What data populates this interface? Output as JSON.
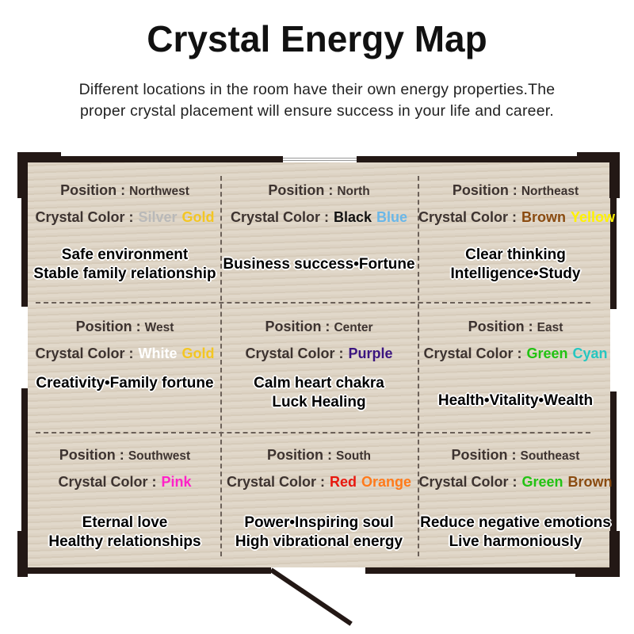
{
  "title": "Crystal Energy Map",
  "subtitle": [
    "Different locations in the room have their own energy properties.The",
    "proper crystal placement will ensure success in your life and career."
  ],
  "position_label": "Position :",
  "crystal_label": "Crystal Color :",
  "colors": {
    "Silver": "#b9b9b9",
    "Gold": "#f3c623",
    "Black": "#111111",
    "Blue": "#6ab7e8",
    "Brown": "#8a4b10",
    "Yellow": "#fff200",
    "White": "#ffffff",
    "Purple": "#3b1580",
    "Green": "#22c313",
    "Cyan": "#26c6c0",
    "Pink": "#ff22c8",
    "Red": "#e8180f",
    "Orange": "#ff7a1a"
  },
  "cells": [
    {
      "position": "Northwest",
      "crystals": [
        "Silver",
        "Gold"
      ],
      "desc": [
        "Safe environment",
        "Stable family relationship"
      ]
    },
    {
      "position": "North",
      "crystals": [
        "Black",
        "Blue"
      ],
      "desc": [
        "Business success•Fortune"
      ]
    },
    {
      "position": "Northeast",
      "crystals": [
        "Brown",
        "Yellow"
      ],
      "desc": [
        "Clear thinking",
        "Intelligence•Study"
      ]
    },
    {
      "position": "West",
      "crystals": [
        "White",
        "Gold"
      ],
      "desc": [
        "Creativity•Family fortune"
      ]
    },
    {
      "position": "Center",
      "crystals": [
        "Purple"
      ],
      "desc": [
        "Calm heart chakra",
        "Luck Healing"
      ]
    },
    {
      "position": "East",
      "crystals": [
        "Green",
        "Cyan"
      ],
      "desc": [
        "Health•Vitality•Wealth"
      ]
    },
    {
      "position": "Southwest",
      "crystals": [
        "Pink"
      ],
      "desc": [
        "Eternal love",
        "Healthy relationships"
      ]
    },
    {
      "position": "South",
      "crystals": [
        "Red",
        "Orange"
      ],
      "desc": [
        "Power•Inspiring soul",
        "High vibrational energy"
      ]
    },
    {
      "position": "Southeast",
      "crystals": [
        "Green",
        "Brown"
      ],
      "desc": [
        "Reduce negative emotions",
        "Live harmoniously"
      ]
    }
  ]
}
